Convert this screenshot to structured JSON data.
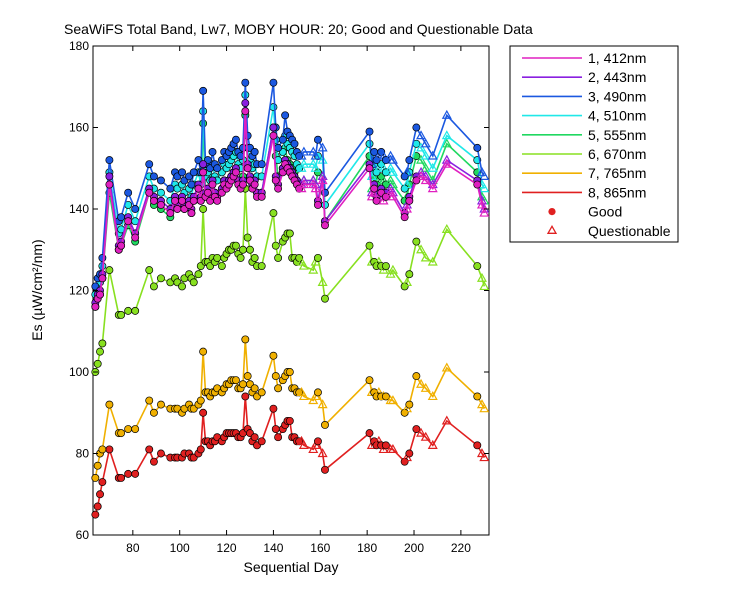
{
  "chart_data": {
    "type": "line",
    "title": "SeaWiFS Total Band,  Lw7, MOBY HOUR: 20;  Good and Questionable Data",
    "xlabel": "Sequential Day",
    "ylabel": "Es (µW/cm²/nm)",
    "xlim": [
      63,
      232
    ],
    "ylim": [
      60,
      180
    ],
    "xticks": [
      80,
      100,
      120,
      140,
      160,
      180,
      200,
      220
    ],
    "yticks": [
      60,
      80,
      100,
      120,
      140,
      160,
      180
    ],
    "grid": false,
    "legend_position": "outside-right",
    "x": [
      64,
      65,
      66,
      67,
      70,
      74,
      75,
      78,
      81,
      87,
      89,
      92,
      96,
      98,
      99,
      101,
      102,
      104,
      105,
      106,
      108,
      109,
      110,
      111,
      112,
      113,
      114,
      115,
      116,
      118,
      119,
      120,
      121,
      122,
      123,
      124,
      125,
      126,
      127,
      128,
      129,
      130,
      131,
      132,
      133,
      135,
      140,
      141,
      142,
      144,
      145,
      146,
      147,
      148,
      149,
      150,
      151,
      152,
      153,
      157,
      158,
      159,
      161,
      162,
      181,
      182,
      183,
      184,
      185,
      186,
      187,
      188,
      190,
      191,
      196,
      197,
      198,
      201,
      203,
      205,
      208,
      214,
      227,
      229,
      230
    ],
    "quality": [
      "good",
      "good",
      "good",
      "good",
      "good",
      "good",
      "good",
      "good",
      "good",
      "good",
      "good",
      "good",
      "good",
      "good",
      "good",
      "good",
      "good",
      "good",
      "good",
      "good",
      "good",
      "good",
      "good",
      "good",
      "good",
      "good",
      "good",
      "good",
      "good",
      "good",
      "good",
      "good",
      "good",
      "good",
      "good",
      "good",
      "good",
      "good",
      "good",
      "good",
      "good",
      "good",
      "good",
      "good",
      "good",
      "good",
      "good",
      "good",
      "good",
      "good",
      "good",
      "good",
      "good",
      "good",
      "good",
      "good",
      "good",
      "questionable",
      "questionable",
      "questionable",
      "questionable",
      "good",
      "questionable",
      "good",
      "good",
      "questionable",
      "good",
      "good",
      "questionable",
      "good",
      "questionable",
      "good",
      "questionable",
      "questionable",
      "good",
      "questionable",
      "good",
      "good",
      "questionable",
      "questionable",
      "questionable",
      "questionable",
      "good",
      "questionable",
      "questionable"
    ],
    "series": [
      {
        "name": "1, 412nm",
        "color": "#e020c0",
        "values": [
          116,
          118,
          119,
          123,
          146,
          130,
          131,
          137,
          133,
          144,
          142,
          141,
          139,
          142,
          140,
          142,
          140,
          141,
          139,
          142,
          145,
          142,
          149,
          143,
          144,
          142,
          146,
          143,
          142,
          144,
          146,
          145,
          146,
          147,
          148,
          149,
          146,
          145,
          146,
          164,
          150,
          147,
          145,
          146,
          143,
          143,
          158,
          147,
          145,
          149,
          151,
          150,
          149,
          148,
          147,
          146,
          145,
          145,
          146,
          146,
          145,
          141,
          147,
          136,
          150,
          143,
          145,
          142,
          143,
          144,
          142,
          143,
          144,
          143,
          138,
          140,
          142,
          147,
          148,
          147,
          145,
          151,
          146,
          141,
          139
        ]
      },
      {
        "name": "2, 443nm",
        "color": "#8a20e0",
        "values": [
          117,
          119,
          120,
          124,
          148,
          131,
          132,
          138,
          134,
          145,
          143,
          142,
          140,
          143,
          141,
          143,
          141,
          142,
          140,
          143,
          146,
          143,
          151,
          144,
          145,
          143,
          147,
          144,
          143,
          145,
          147,
          146,
          147,
          148,
          149,
          150,
          147,
          146,
          147,
          166,
          151,
          148,
          146,
          147,
          144,
          144,
          160,
          148,
          146,
          150,
          152,
          151,
          150,
          149,
          148,
          147,
          146,
          146,
          147,
          147,
          146,
          142,
          148,
          137,
          151,
          144,
          146,
          143,
          144,
          145,
          143,
          144,
          145,
          144,
          139,
          141,
          143,
          148,
          149,
          148,
          146,
          152,
          147,
          142,
          140
        ]
      },
      {
        "name": "3, 490nm",
        "color": "#1b58e0",
        "values": [
          121,
          123,
          124,
          128,
          152,
          137,
          138,
          144,
          140,
          151,
          148,
          147,
          145,
          149,
          148,
          149,
          147,
          148,
          146,
          149,
          152,
          149,
          169,
          151,
          152,
          150,
          154,
          151,
          150,
          152,
          154,
          153,
          154,
          155,
          156,
          157,
          154,
          153,
          155,
          171,
          158,
          155,
          153,
          154,
          151,
          151,
          171,
          160,
          155,
          157,
          163,
          159,
          158,
          157,
          156,
          154,
          153,
          153,
          154,
          154,
          153,
          157,
          155,
          144,
          159,
          151,
          154,
          152,
          153,
          154,
          153,
          152,
          153,
          152,
          148,
          149,
          152,
          160,
          158,
          156,
          153,
          163,
          155,
          149,
          148
        ]
      },
      {
        "name": "4, 510nm",
        "color": "#20e8e8",
        "values": [
          119,
          121,
          122,
          126,
          149,
          134,
          135,
          141,
          137,
          148,
          145,
          144,
          142,
          146,
          145,
          146,
          144,
          145,
          143,
          146,
          149,
          146,
          164,
          148,
          149,
          147,
          151,
          148,
          147,
          149,
          151,
          150,
          151,
          152,
          153,
          154,
          151,
          150,
          152,
          168,
          155,
          152,
          150,
          151,
          148,
          148,
          165,
          157,
          152,
          154,
          158,
          156,
          155,
          154,
          153,
          151,
          150,
          150,
          151,
          151,
          150,
          153,
          152,
          141,
          156,
          148,
          151,
          149,
          150,
          151,
          150,
          149,
          150,
          149,
          145,
          146,
          149,
          156,
          155,
          153,
          150,
          158,
          152,
          146,
          145
        ]
      },
      {
        "name": "5, 555nm",
        "color": "#20d860",
        "values": [
          116,
          118,
          119,
          123,
          144,
          130,
          131,
          136,
          132,
          144,
          141,
          140,
          138,
          142,
          141,
          142,
          140,
          141,
          139,
          142,
          145,
          142,
          161,
          144,
          145,
          143,
          147,
          144,
          143,
          145,
          147,
          146,
          147,
          148,
          149,
          150,
          147,
          146,
          148,
          163,
          151,
          148,
          146,
          147,
          144,
          144,
          160,
          153,
          148,
          150,
          155,
          152,
          151,
          150,
          149,
          147,
          146,
          146,
          147,
          147,
          146,
          149,
          148,
          137,
          153,
          145,
          148,
          146,
          147,
          148,
          147,
          146,
          147,
          146,
          142,
          143,
          146,
          153,
          152,
          150,
          147,
          156,
          149,
          143,
          142
        ]
      },
      {
        "name": "6, 670nm",
        "color": "#88e020",
        "values": [
          100,
          102,
          105,
          107,
          125,
          114,
          114,
          115,
          115,
          125,
          121,
          123,
          122,
          123,
          122,
          121,
          123,
          124,
          123,
          122,
          124,
          126,
          140,
          127,
          127,
          126,
          128,
          127,
          128,
          126,
          128,
          129,
          130,
          130,
          131,
          131,
          129,
          128,
          130,
          145,
          133,
          130,
          127,
          128,
          126,
          126,
          139,
          131,
          128,
          132,
          133,
          134,
          134,
          128,
          128,
          127,
          128,
          127,
          126,
          125,
          127,
          128,
          122,
          118,
          131,
          127,
          127,
          126,
          127,
          126,
          125,
          126,
          124,
          125,
          121,
          122,
          124,
          132,
          130,
          128,
          127,
          135,
          126,
          123,
          121
        ]
      },
      {
        "name": "7, 765nm",
        "color": "#f0b000",
        "values": [
          74,
          77,
          80,
          81,
          92,
          85,
          85,
          86,
          86,
          93,
          90,
          92,
          91,
          91,
          91,
          90,
          91,
          92,
          91,
          91,
          92,
          93,
          105,
          95,
          95,
          94,
          95,
          95,
          96,
          95,
          96,
          97,
          97,
          98,
          98,
          98,
          96,
          96,
          97,
          108,
          99,
          97,
          95,
          96,
          94,
          95,
          104,
          99,
          96,
          98,
          99,
          100,
          100,
          96,
          96,
          95,
          95,
          95,
          94,
          93,
          94,
          95,
          92,
          87,
          98,
          95,
          95,
          94,
          95,
          94,
          94,
          94,
          93,
          93,
          90,
          91,
          92,
          99,
          97,
          96,
          94,
          101,
          94,
          92,
          91
        ]
      },
      {
        "name": "8, 865nm",
        "color": "#e02020",
        "values": [
          65,
          67,
          70,
          73,
          81,
          74,
          74,
          75,
          75,
          81,
          78,
          80,
          79,
          79,
          79,
          79,
          80,
          80,
          79,
          79,
          80,
          81,
          90,
          83,
          83,
          82,
          83,
          83,
          84,
          83,
          84,
          85,
          85,
          85,
          85,
          85,
          84,
          84,
          85,
          94,
          86,
          85,
          83,
          84,
          82,
          83,
          91,
          86,
          84,
          86,
          87,
          88,
          88,
          84,
          84,
          83,
          83,
          83,
          82,
          81,
          82,
          83,
          80,
          76,
          85,
          82,
          83,
          82,
          83,
          82,
          81,
          82,
          81,
          81,
          78,
          79,
          80,
          86,
          85,
          84,
          82,
          88,
          82,
          80,
          79
        ]
      }
    ],
    "markers": [
      {
        "name": "Good",
        "symbol": "circle",
        "color": "#e02020"
      },
      {
        "name": "Questionable",
        "symbol": "triangle",
        "color": "#e02020"
      }
    ]
  }
}
